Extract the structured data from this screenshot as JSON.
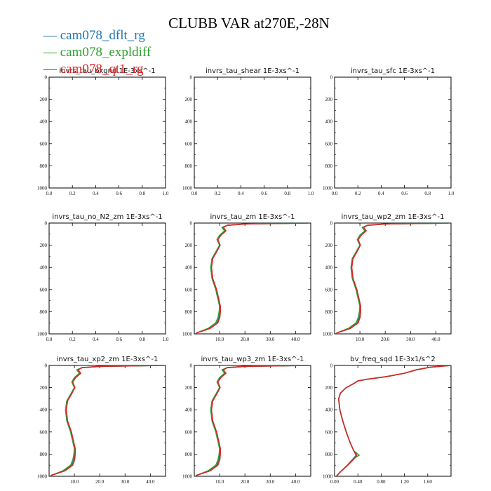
{
  "figure": {
    "title": "CLUBB VAR at270E,-28N",
    "legend": [
      {
        "label": "cam078_dflt_rg",
        "color": "#1f77b4"
      },
      {
        "label": "cam078_expldiff",
        "color": "#2ca02c"
      },
      {
        "label": "cam078_qt1_rg",
        "color": "#d62728"
      }
    ]
  },
  "chart_data": [
    {
      "type": "line",
      "title": "invrs_tau_bkgnd",
      "units": "1E-3xs^-1",
      "xlim": [
        0,
        1
      ],
      "ylim": [
        1000,
        0
      ],
      "xticks": [
        "0.0",
        "0.2",
        "0.4",
        "0.6",
        "0.8",
        "1.0"
      ],
      "yticks": [
        "0",
        "200",
        "400",
        "600",
        "800",
        "1000"
      ],
      "series": []
    },
    {
      "type": "line",
      "title": "invrs_tau_shear",
      "units": "1E-3xs^-1",
      "xlim": [
        0,
        1
      ],
      "ylim": [
        1000,
        0
      ],
      "xticks": [
        "0.0",
        "0.2",
        "0.4",
        "0.6",
        "0.8",
        "1.0"
      ],
      "yticks": [
        "0",
        "200",
        "400",
        "600",
        "800",
        "1000"
      ],
      "series": []
    },
    {
      "type": "line",
      "title": "invrs_tau_sfc",
      "units": "1E-3xs^-1",
      "xlim": [
        0,
        1
      ],
      "ylim": [
        1000,
        0
      ],
      "xticks": [
        "0.0",
        "0.2",
        "0.4",
        "0.6",
        "0.8",
        "1.0"
      ],
      "yticks": [
        "0",
        "200",
        "400",
        "600",
        "800",
        "1000"
      ],
      "series": []
    },
    {
      "type": "line",
      "title": "invrs_tau_no_N2_zm",
      "units": "1E-3xs^-1",
      "xlim": [
        0,
        1
      ],
      "ylim": [
        1000,
        0
      ],
      "xticks": [
        "0.0",
        "0.2",
        "0.4",
        "0.6",
        "0.8",
        "1.0"
      ],
      "yticks": [
        "0",
        "200",
        "400",
        "600",
        "800",
        "1000"
      ],
      "series": []
    },
    {
      "type": "line",
      "title": "invrs_tau_zm",
      "units": "1E-3xs^-1",
      "xlim": [
        0,
        46
      ],
      "ylim": [
        1000,
        0
      ],
      "xtick_values": [
        10,
        20,
        30,
        40
      ],
      "xticks": [
        "10.0",
        "20.0",
        "30.0",
        "40.0"
      ],
      "ytick_values": [
        0,
        200,
        400,
        600,
        800,
        1000
      ],
      "yticks": [
        "0",
        "200",
        "400",
        "600",
        "800",
        "1000"
      ],
      "series": [
        {
          "color": "#1f77b4",
          "x": [
            45,
            20,
            13,
            11,
            12,
            10,
            9,
            10,
            8.5,
            7,
            6.5,
            7,
            8.5,
            9.5,
            10,
            10,
            9.8,
            9,
            6,
            3,
            1,
            0.5
          ],
          "y": [
            0,
            8,
            20,
            40,
            70,
            110,
            150,
            200,
            260,
            320,
            400,
            500,
            600,
            700,
            750,
            800,
            850,
            900,
            950,
            975,
            990,
            1000
          ]
        },
        {
          "color": "#2ca02c",
          "x": [
            45,
            20,
            13,
            11,
            12,
            10,
            9,
            10,
            8.5,
            7,
            6.5,
            7,
            8.5,
            9.5,
            10,
            9.8,
            9.4,
            8.5,
            5.5,
            2.8,
            1,
            0.5
          ],
          "y": [
            0,
            8,
            20,
            40,
            70,
            110,
            150,
            200,
            260,
            320,
            400,
            500,
            600,
            700,
            750,
            800,
            850,
            900,
            950,
            975,
            990,
            1000
          ]
        },
        {
          "color": "#d62728",
          "x": [
            45,
            20,
            13,
            11.5,
            12.5,
            10.5,
            9.3,
            10.2,
            8.8,
            7.3,
            6.8,
            7.3,
            8.8,
            9.8,
            10.3,
            10.3,
            10.1,
            9.3,
            6.3,
            3.2,
            1.1,
            0.5
          ],
          "y": [
            0,
            8,
            20,
            40,
            70,
            110,
            150,
            200,
            260,
            320,
            400,
            500,
            600,
            700,
            750,
            800,
            850,
            900,
            950,
            975,
            990,
            1000
          ]
        }
      ]
    },
    {
      "type": "line",
      "title": "invrs_tau_wp2_zm",
      "units": "1E-3xs^-1",
      "xlim": [
        0,
        46
      ],
      "ylim": [
        1000,
        0
      ],
      "xtick_values": [
        10,
        20,
        30,
        40
      ],
      "xticks": [
        "10.0",
        "20.0",
        "30.0",
        "40.0"
      ],
      "ytick_values": [
        0,
        200,
        400,
        600,
        800,
        1000
      ],
      "yticks": [
        "0",
        "200",
        "400",
        "600",
        "800",
        "1000"
      ],
      "series": [
        {
          "color": "#1f77b4",
          "x": [
            45,
            20,
            13,
            11,
            12,
            10,
            9,
            10,
            8.5,
            7,
            6.5,
            7,
            8.5,
            9.5,
            10,
            10,
            9.8,
            9,
            6,
            3,
            1,
            0.5
          ],
          "y": [
            0,
            8,
            20,
            40,
            70,
            110,
            150,
            200,
            260,
            320,
            400,
            500,
            600,
            700,
            750,
            800,
            850,
            900,
            950,
            975,
            990,
            1000
          ]
        },
        {
          "color": "#2ca02c",
          "x": [
            45,
            20,
            13,
            11,
            12,
            10,
            9,
            10,
            8.5,
            7,
            6.5,
            7,
            8.5,
            9.5,
            10,
            9.8,
            9.4,
            8.5,
            5.5,
            2.8,
            1,
            0.5
          ],
          "y": [
            0,
            8,
            20,
            40,
            70,
            110,
            150,
            200,
            260,
            320,
            400,
            500,
            600,
            700,
            750,
            800,
            850,
            900,
            950,
            975,
            990,
            1000
          ]
        },
        {
          "color": "#d62728",
          "x": [
            45,
            20,
            13,
            11.5,
            12.5,
            10.5,
            9.3,
            10.2,
            8.8,
            7.3,
            6.8,
            7.3,
            8.8,
            9.8,
            10.3,
            10.3,
            10.1,
            9.3,
            6.3,
            3.2,
            1.1,
            0.5
          ],
          "y": [
            0,
            8,
            20,
            40,
            70,
            110,
            150,
            200,
            260,
            320,
            400,
            500,
            600,
            700,
            750,
            800,
            850,
            900,
            950,
            975,
            990,
            1000
          ]
        }
      ]
    },
    {
      "type": "line",
      "title": "invrs_tau_xp2_zm",
      "units": "1E-3xs^-1",
      "xlim": [
        0,
        46
      ],
      "ylim": [
        1000,
        0
      ],
      "xtick_values": [
        10,
        20,
        30,
        40
      ],
      "xticks": [
        "10.0",
        "20.0",
        "30.0",
        "40.0"
      ],
      "ytick_values": [
        0,
        200,
        400,
        600,
        800,
        1000
      ],
      "yticks": [
        "0",
        "200",
        "400",
        "600",
        "800",
        "1000"
      ],
      "series": [
        {
          "color": "#1f77b4",
          "x": [
            45,
            20,
            13,
            11,
            12,
            10,
            9,
            10,
            8.5,
            7,
            6.5,
            7,
            8.5,
            9.5,
            10,
            10,
            9.8,
            9,
            6,
            3,
            1,
            0.5
          ],
          "y": [
            0,
            8,
            20,
            40,
            70,
            110,
            150,
            200,
            260,
            320,
            400,
            500,
            600,
            700,
            750,
            800,
            850,
            900,
            950,
            975,
            990,
            1000
          ]
        },
        {
          "color": "#2ca02c",
          "x": [
            45,
            20,
            13,
            11,
            12,
            10,
            9,
            10,
            8.5,
            7,
            6.5,
            7,
            8.5,
            9.5,
            10,
            9.8,
            9.4,
            8.5,
            5.5,
            2.8,
            1,
            0.5
          ],
          "y": [
            0,
            8,
            20,
            40,
            70,
            110,
            150,
            200,
            260,
            320,
            400,
            500,
            600,
            700,
            750,
            800,
            850,
            900,
            950,
            975,
            990,
            1000
          ]
        },
        {
          "color": "#d62728",
          "x": [
            45,
            20,
            13,
            11.5,
            12.5,
            10.5,
            9.3,
            10.2,
            8.8,
            7.3,
            6.8,
            7.3,
            8.8,
            9.8,
            10.3,
            10.3,
            10.1,
            9.3,
            6.3,
            3.2,
            1.1,
            0.5
          ],
          "y": [
            0,
            8,
            20,
            40,
            70,
            110,
            150,
            200,
            260,
            320,
            400,
            500,
            600,
            700,
            750,
            800,
            850,
            900,
            950,
            975,
            990,
            1000
          ]
        }
      ]
    },
    {
      "type": "line",
      "title": "invrs_tau_wp3_zm",
      "units": "1E-3xs^-1",
      "xlim": [
        0,
        46
      ],
      "ylim": [
        1000,
        0
      ],
      "xtick_values": [
        10,
        20,
        30,
        40
      ],
      "xticks": [
        "10.0",
        "20.0",
        "30.0",
        "40.0"
      ],
      "ytick_values": [
        0,
        200,
        400,
        600,
        800,
        1000
      ],
      "yticks": [
        "0",
        "200",
        "400",
        "600",
        "800",
        "1000"
      ],
      "series": [
        {
          "color": "#1f77b4",
          "x": [
            45,
            20,
            13,
            11,
            12,
            10,
            9,
            10,
            8.5,
            7,
            6.5,
            7,
            8.5,
            9.5,
            10,
            10,
            9.8,
            9,
            6,
            3,
            1,
            0.5
          ],
          "y": [
            0,
            8,
            20,
            40,
            70,
            110,
            150,
            200,
            260,
            320,
            400,
            500,
            600,
            700,
            750,
            800,
            850,
            900,
            950,
            975,
            990,
            1000
          ]
        },
        {
          "color": "#2ca02c",
          "x": [
            45,
            20,
            13,
            11,
            12,
            10,
            9,
            10,
            8.5,
            7,
            6.5,
            7,
            8.5,
            9.5,
            10,
            9.8,
            9.4,
            8.5,
            5.5,
            2.8,
            1,
            0.5
          ],
          "y": [
            0,
            8,
            20,
            40,
            70,
            110,
            150,
            200,
            260,
            320,
            400,
            500,
            600,
            700,
            750,
            800,
            850,
            900,
            950,
            975,
            990,
            1000
          ]
        },
        {
          "color": "#d62728",
          "x": [
            45,
            20,
            13,
            11.5,
            12.5,
            10.5,
            9.3,
            10.2,
            8.8,
            7.3,
            6.8,
            7.3,
            8.8,
            9.8,
            10.3,
            10.3,
            10.1,
            9.3,
            6.3,
            3.2,
            1.1,
            0.5
          ],
          "y": [
            0,
            8,
            20,
            40,
            70,
            110,
            150,
            200,
            260,
            320,
            400,
            500,
            600,
            700,
            750,
            800,
            850,
            900,
            950,
            975,
            990,
            1000
          ]
        }
      ]
    },
    {
      "type": "line",
      "title": "bv_freq_sqd",
      "units": "1E-3x1/s^2",
      "xlim": [
        0,
        2.0
      ],
      "ylim": [
        1000,
        0
      ],
      "xtick_values": [
        0,
        0.4,
        0.8,
        1.2,
        1.6
      ],
      "xticks": [
        "0.00",
        "0.40",
        "0.80",
        "1.20",
        "1.60"
      ],
      "ytick_values": [
        0,
        200,
        400,
        600,
        800,
        1000
      ],
      "yticks": [
        "0",
        "200",
        "400",
        "600",
        "800",
        "1000"
      ],
      "series": [
        {
          "color": "#1f77b4",
          "x": [
            2.0,
            1.65,
            1.4,
            1.2,
            0.9,
            0.55,
            0.4,
            0.34,
            0.2,
            0.1,
            0.07,
            0.09,
            0.14,
            0.2,
            0.27,
            0.33,
            0.37,
            0.34,
            0.22,
            0.1,
            0.03
          ],
          "y": [
            0,
            15,
            40,
            70,
            100,
            125,
            140,
            160,
            200,
            250,
            300,
            400,
            500,
            600,
            700,
            770,
            810,
            830,
            900,
            960,
            1000
          ]
        },
        {
          "color": "#2ca02c",
          "x": [
            2.0,
            1.65,
            1.4,
            1.2,
            0.9,
            0.55,
            0.4,
            0.34,
            0.2,
            0.1,
            0.07,
            0.09,
            0.14,
            0.2,
            0.27,
            0.33,
            0.42,
            0.36,
            0.23,
            0.1,
            0.03
          ],
          "y": [
            0,
            15,
            40,
            70,
            100,
            125,
            140,
            160,
            200,
            250,
            300,
            400,
            500,
            600,
            700,
            770,
            810,
            830,
            900,
            960,
            1000
          ]
        },
        {
          "color": "#d62728",
          "x": [
            2.0,
            1.65,
            1.4,
            1.2,
            0.9,
            0.55,
            0.4,
            0.34,
            0.2,
            0.1,
            0.07,
            0.09,
            0.14,
            0.2,
            0.27,
            0.33,
            0.38,
            0.35,
            0.22,
            0.1,
            0.03
          ],
          "y": [
            0,
            15,
            40,
            70,
            100,
            125,
            140,
            160,
            200,
            250,
            300,
            400,
            500,
            600,
            700,
            770,
            810,
            830,
            900,
            960,
            1000
          ]
        }
      ]
    }
  ]
}
